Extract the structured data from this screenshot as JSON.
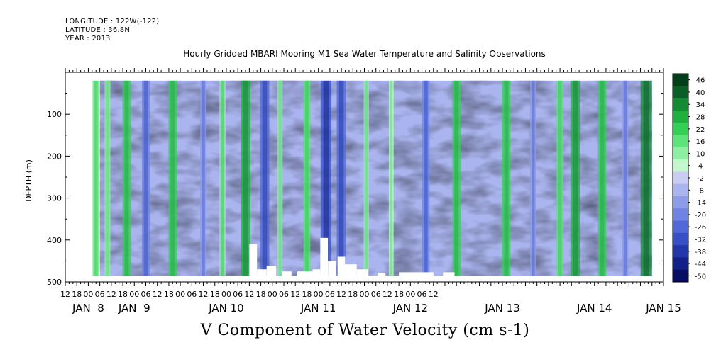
{
  "header": {
    "longitude": "LONGITUDE : 122W(-122)",
    "latitude": "LATITUDE : 36.8N",
    "year": "YEAR : 2013"
  },
  "chart_data": {
    "type": "heatmap",
    "title": "Hourly Gridded MBARI Mooring M1 Sea Water Temperature and Salinity Observations",
    "xlabel": "V Component of Water Velocity (cm s-1)",
    "ylabel": "DEPTH (m)",
    "variable": "V Component of Water Velocity",
    "units": "cm s-1",
    "x_range_hours": [
      -12,
      300
    ],
    "data_extent_hours": [
      6,
      294
    ],
    "y_range": [
      500,
      0
    ],
    "data_depth_extent": [
      20,
      485
    ],
    "y_ticks": [
      100,
      200,
      300,
      400,
      500
    ],
    "y_tick_labels": [
      "100",
      "200",
      "300",
      "400",
      "500"
    ],
    "x_hour_labels": [
      "12",
      "18",
      "00",
      "06",
      "12",
      "18",
      "00",
      "06",
      "12",
      "18",
      "00",
      "06",
      "12",
      "18",
      "00",
      "06",
      "12",
      "18",
      "00",
      "06",
      "12",
      "18",
      "00",
      "06",
      "12",
      "18",
      "00",
      "06",
      "12",
      "18",
      "00",
      "06",
      "12"
    ],
    "x_day_labels": [
      "JAN  8",
      "JAN  9",
      "JAN 10",
      "JAN 11",
      "JAN 12",
      "JAN 13",
      "JAN 14",
      "JAN 15"
    ],
    "x_day_label_hours": [
      0,
      24,
      72,
      120,
      168,
      216,
      264,
      300
    ],
    "colorbar_levels": [
      "46",
      "40",
      "34",
      "28",
      "22",
      "16",
      "10",
      "4",
      "-2",
      "-8",
      "-14",
      "-20",
      "-26",
      "-32",
      "-38",
      "-44",
      "-50"
    ],
    "colorbar_colors": [
      "#003f17",
      "#0a5e26",
      "#138a33",
      "#1fb040",
      "#34cf55",
      "#5ee27a",
      "#8eeea2",
      "#c4f7cc",
      "#c9cdf4",
      "#aab4ee",
      "#8d9ce8",
      "#6f84e2",
      "#5068d8",
      "#3750c8",
      "#2137aa",
      "#12208a",
      "#070d60"
    ],
    "series": [
      {
        "name": "green-positive",
        "hours": [
          4,
          10,
          20,
          44,
          70,
          82,
          100,
          114,
          145,
          158,
          192,
          218,
          246,
          254,
          268,
          291
        ],
        "values": [
          16,
          12,
          22,
          22,
          14,
          28,
          10,
          16,
          10,
          8,
          22,
          22,
          16,
          28,
          22,
          34
        ]
      },
      {
        "name": "blue-negative",
        "hours": [
          30,
          60,
          92,
          124,
          132,
          176,
          232,
          280
        ],
        "values": [
          -20,
          -14,
          -26,
          -32,
          -26,
          -20,
          -14,
          -14
        ]
      }
    ],
    "missing_bottom_segments": [
      {
        "h0": 84,
        "h1": 88,
        "top": 410
      },
      {
        "h0": 88,
        "h1": 93,
        "top": 470
      },
      {
        "h0": 93,
        "h1": 98,
        "top": 462
      },
      {
        "h0": 101,
        "h1": 106,
        "top": 475
      },
      {
        "h0": 109,
        "h1": 117,
        "top": 475
      },
      {
        "h0": 117,
        "h1": 121,
        "top": 470
      },
      {
        "h0": 121,
        "h1": 125,
        "top": 395
      },
      {
        "h0": 125,
        "h1": 129,
        "top": 450
      },
      {
        "h0": 130,
        "h1": 134,
        "top": 440
      },
      {
        "h0": 134,
        "h1": 140,
        "top": 458
      },
      {
        "h0": 140,
        "h1": 146,
        "top": 470
      },
      {
        "h0": 151,
        "h1": 155,
        "top": 478
      },
      {
        "h0": 162,
        "h1": 180,
        "top": 477
      },
      {
        "h0": 185,
        "h1": 191,
        "top": 477
      }
    ]
  }
}
